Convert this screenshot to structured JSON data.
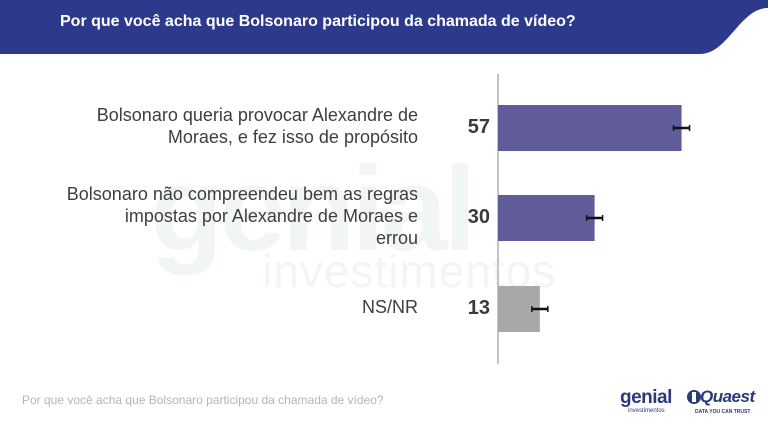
{
  "header": {
    "title": "Por que você acha que Bolsonaro participou da chamada de vídeo?"
  },
  "chart_data": {
    "type": "bar",
    "orientation": "horizontal",
    "categories": [
      [
        "Bolsonaro queria provocar Alexandre de",
        "Moraes, e fez isso de propósito"
      ],
      [
        "Bolsonaro não compreendeu bem as regras",
        "impostas por Alexandre de Moraes e",
        "errou"
      ],
      [
        "NS/NR"
      ]
    ],
    "values": [
      57,
      30,
      13
    ],
    "value_labels": [
      "57",
      "30",
      "13"
    ],
    "bar_colors": [
      "#5f5c99",
      "#5f5c99",
      "#a8a8a8"
    ],
    "has_error_bars": true,
    "xlim": [
      0,
      100
    ],
    "grid": false,
    "legend": "none"
  },
  "footer": {
    "question": "Por que você acha que Bolsonaro participou da chamada de vídeo?"
  },
  "watermark": {
    "brand": "genial",
    "sub": "investimentos"
  },
  "logos": {
    "genial": "genial",
    "genial_sub": "investimentos",
    "quaest": "Quaest",
    "quaest_tagline": "DATA YOU CAN TRUST"
  },
  "colors": {
    "header_bg": "#2d3a8c",
    "bar_primary": "#5f5c99",
    "bar_nsnr": "#a8a8a8"
  }
}
